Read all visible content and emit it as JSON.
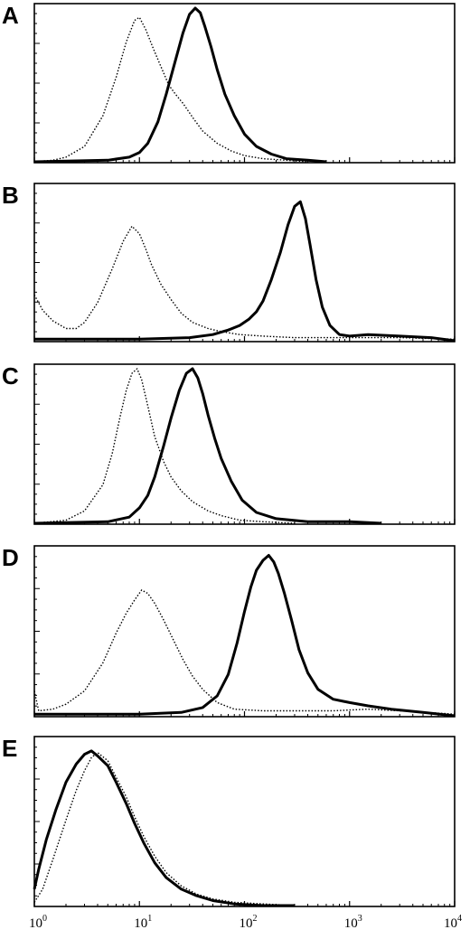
{
  "figure": {
    "x_tick_labels": [
      {
        "base": "10",
        "exp": "0"
      },
      {
        "base": "10",
        "exp": "1"
      },
      {
        "base": "10",
        "exp": "2"
      },
      {
        "base": "10",
        "exp": "3"
      },
      {
        "base": "10",
        "exp": "4"
      }
    ]
  },
  "chart_data": [
    {
      "type": "line",
      "panel": "A",
      "x_scale": "log",
      "xlim": [
        1,
        10000
      ],
      "ylim": [
        0,
        1
      ],
      "grid": false,
      "series": [
        {
          "style": "dotted",
          "x": [
            1.0,
            1.5,
            2.0,
            3.0,
            4.5,
            6.0,
            7.5,
            9.0,
            10.0,
            11.5,
            13.5,
            16.0,
            19.0,
            22.0,
            26.0,
            32.0,
            40.0,
            55.0,
            75.0,
            100.0,
            150.0,
            250.0,
            400.0
          ],
          "y": [
            0.0,
            0.01,
            0.03,
            0.1,
            0.3,
            0.55,
            0.78,
            0.92,
            0.94,
            0.86,
            0.74,
            0.62,
            0.5,
            0.44,
            0.38,
            0.29,
            0.2,
            0.12,
            0.07,
            0.04,
            0.02,
            0.01,
            0.0
          ]
        },
        {
          "style": "solid",
          "x": [
            1.0,
            5.0,
            8.0,
            10.0,
            12.0,
            15.0,
            18.0,
            22.0,
            26.0,
            30.0,
            34.0,
            38.0,
            42.0,
            48.0,
            55.0,
            65.0,
            80.0,
            100.0,
            130.0,
            180.0,
            250.0,
            400.0,
            600.0
          ],
          "y": [
            0.0,
            0.01,
            0.03,
            0.06,
            0.12,
            0.26,
            0.44,
            0.66,
            0.84,
            0.96,
            1.0,
            0.97,
            0.88,
            0.75,
            0.6,
            0.44,
            0.3,
            0.18,
            0.1,
            0.05,
            0.02,
            0.01,
            0.0
          ]
        }
      ]
    },
    {
      "type": "line",
      "panel": "B",
      "x_scale": "log",
      "xlim": [
        1,
        10000
      ],
      "ylim": [
        0,
        1
      ],
      "grid": false,
      "series": [
        {
          "style": "dotted",
          "x": [
            1.0,
            1.2,
            1.5,
            2.0,
            2.5,
            3.0,
            4.0,
            5.5,
            7.0,
            8.5,
            10.0,
            11.5,
            13.0,
            16.0,
            20.0,
            25.0,
            32.0,
            45.0,
            60.0,
            90.0,
            150.0,
            300.0,
            600.0,
            1000.0,
            3000.0,
            10000.0
          ],
          "y": [
            0.3,
            0.2,
            0.13,
            0.08,
            0.08,
            0.12,
            0.25,
            0.47,
            0.65,
            0.75,
            0.7,
            0.6,
            0.5,
            0.37,
            0.27,
            0.18,
            0.12,
            0.08,
            0.06,
            0.04,
            0.03,
            0.02,
            0.02,
            0.02,
            0.02,
            0.01
          ]
        },
        {
          "style": "solid",
          "x": [
            1.0,
            3.0,
            10.0,
            30.0,
            50.0,
            70.0,
            90.0,
            110.0,
            130.0,
            150.0,
            180.0,
            220.0,
            260.0,
            300.0,
            340.0,
            380.0,
            420.0,
            480.0,
            550.0,
            650.0,
            800.0,
            1000.0,
            1500.0,
            3000.0,
            6000.0,
            10000.0
          ],
          "y": [
            0.01,
            0.01,
            0.01,
            0.02,
            0.04,
            0.07,
            0.1,
            0.14,
            0.19,
            0.26,
            0.4,
            0.58,
            0.76,
            0.88,
            0.91,
            0.8,
            0.63,
            0.4,
            0.22,
            0.1,
            0.04,
            0.03,
            0.04,
            0.03,
            0.02,
            0.0
          ]
        }
      ]
    },
    {
      "type": "line",
      "panel": "C",
      "x_scale": "log",
      "xlim": [
        1,
        10000
      ],
      "ylim": [
        0,
        1
      ],
      "grid": false,
      "series": [
        {
          "style": "dotted",
          "x": [
            1.0,
            2.0,
            3.0,
            4.5,
            5.5,
            6.5,
            7.5,
            8.5,
            9.5,
            10.5,
            12.0,
            14.0,
            17.0,
            20.0,
            25.0,
            32.0,
            45.0,
            60.0,
            90.0,
            150.0,
            300.0
          ],
          "y": [
            0.0,
            0.02,
            0.08,
            0.25,
            0.45,
            0.68,
            0.86,
            0.97,
            1.0,
            0.93,
            0.76,
            0.56,
            0.4,
            0.3,
            0.21,
            0.14,
            0.08,
            0.05,
            0.02,
            0.01,
            0.0
          ]
        },
        {
          "style": "solid",
          "x": [
            1.0,
            5.0,
            8.0,
            10.0,
            12.0,
            14.0,
            17.0,
            20.0,
            24.0,
            28.0,
            32.0,
            36.0,
            40.0,
            45.0,
            52.0,
            60.0,
            75.0,
            95.0,
            130.0,
            200.0,
            400.0,
            1000.0,
            2000.0
          ],
          "y": [
            0.0,
            0.01,
            0.04,
            0.1,
            0.18,
            0.3,
            0.5,
            0.68,
            0.86,
            0.97,
            1.0,
            0.94,
            0.84,
            0.7,
            0.55,
            0.42,
            0.27,
            0.15,
            0.07,
            0.03,
            0.01,
            0.01,
            0.0
          ]
        }
      ]
    },
    {
      "type": "line",
      "panel": "D",
      "x_scale": "log",
      "xlim": [
        1,
        10000
      ],
      "ylim": [
        0,
        1
      ],
      "grid": false,
      "series": [
        {
          "style": "dotted",
          "x": [
            1.0,
            1.1,
            1.5,
            2.0,
            3.0,
            4.5,
            6.0,
            7.5,
            9.0,
            10.5,
            12.0,
            14.0,
            17.0,
            21.0,
            26.0,
            32.0,
            40.0,
            55.0,
            80.0,
            150.0,
            300.0,
            700.0,
            1500.0,
            3000.0,
            10000.0
          ],
          "y": [
            0.15,
            0.03,
            0.04,
            0.07,
            0.15,
            0.32,
            0.5,
            0.62,
            0.7,
            0.76,
            0.74,
            0.68,
            0.58,
            0.46,
            0.34,
            0.24,
            0.16,
            0.08,
            0.04,
            0.03,
            0.03,
            0.03,
            0.04,
            0.03,
            0.01
          ]
        },
        {
          "style": "solid",
          "x": [
            1.0,
            3.0,
            10.0,
            25.0,
            40.0,
            55.0,
            70.0,
            85.0,
            100.0,
            115.0,
            130.0,
            150.0,
            170.0,
            190.0,
            210.0,
            240.0,
            280.0,
            330.0,
            400.0,
            500.0,
            700.0,
            1000.0,
            1500.0,
            2500.0,
            5000.0,
            10000.0
          ],
          "y": [
            0.01,
            0.01,
            0.01,
            0.02,
            0.05,
            0.12,
            0.25,
            0.44,
            0.63,
            0.78,
            0.88,
            0.94,
            0.97,
            0.93,
            0.86,
            0.74,
            0.58,
            0.4,
            0.26,
            0.16,
            0.1,
            0.08,
            0.06,
            0.04,
            0.02,
            0.0
          ]
        }
      ]
    },
    {
      "type": "line",
      "panel": "E",
      "x_scale": "log",
      "xlim": [
        1,
        10000
      ],
      "ylim": [
        0,
        1
      ],
      "grid": false,
      "series": [
        {
          "style": "dotted",
          "x": [
            1.0,
            1.2,
            1.5,
            2.0,
            2.5,
            3.0,
            3.5,
            4.0,
            5.0,
            6.0,
            7.5,
            9.0,
            11.0,
            14.0,
            18.0,
            25.0,
            35.0,
            50.0,
            80.0,
            150.0,
            300.0
          ],
          "y": [
            0.02,
            0.1,
            0.28,
            0.52,
            0.7,
            0.82,
            0.9,
            0.93,
            0.88,
            0.78,
            0.66,
            0.54,
            0.42,
            0.3,
            0.2,
            0.12,
            0.07,
            0.04,
            0.02,
            0.01,
            0.0
          ]
        },
        {
          "style": "solid",
          "x": [
            1.0,
            1.1,
            1.3,
            1.6,
            2.0,
            2.5,
            3.0,
            3.5,
            4.0,
            5.0,
            6.0,
            7.5,
            9.0,
            11.0,
            14.0,
            18.0,
            25.0,
            35.0,
            50.0,
            80.0,
            150.0,
            300.0
          ],
          "y": [
            0.1,
            0.22,
            0.4,
            0.58,
            0.75,
            0.86,
            0.92,
            0.94,
            0.91,
            0.85,
            0.75,
            0.62,
            0.5,
            0.38,
            0.26,
            0.17,
            0.1,
            0.06,
            0.03,
            0.01,
            0.0,
            0.0
          ]
        }
      ]
    }
  ]
}
